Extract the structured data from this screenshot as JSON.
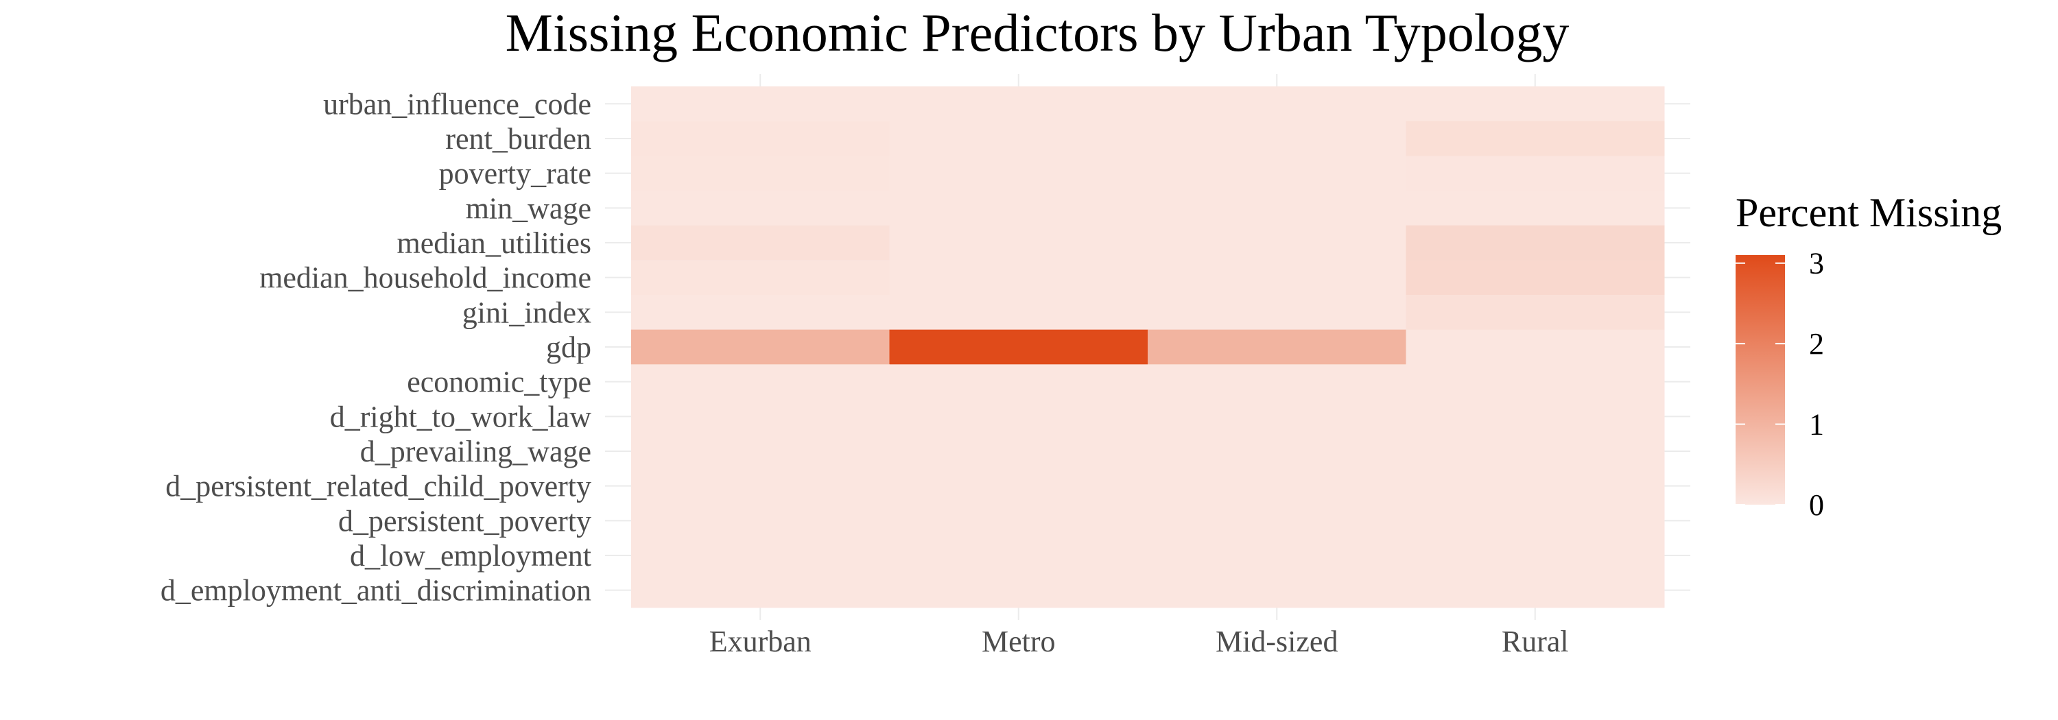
{
  "chart_data": {
    "type": "heatmap",
    "title": "Missing Economic Predictors by Urban Typology",
    "xlabel": "",
    "ylabel": "",
    "x_categories": [
      "Exurban",
      "Metro",
      "Mid-sized",
      "Rural"
    ],
    "y_categories": [
      "urban_influence_code",
      "rent_burden",
      "poverty_rate",
      "min_wage",
      "median_utilities",
      "median_household_income",
      "gini_index",
      "gdp",
      "economic_type",
      "d_right_to_work_law",
      "d_prevailing_wage",
      "d_persistent_related_child_poverty",
      "d_persistent_poverty",
      "d_low_employment",
      "d_employment_anti_discrimination"
    ],
    "values": [
      [
        0.0,
        0.0,
        0.0,
        0.0
      ],
      [
        0.05,
        0.0,
        0.0,
        0.15
      ],
      [
        0.03,
        0.0,
        0.0,
        0.02
      ],
      [
        0.0,
        0.0,
        0.0,
        0.0
      ],
      [
        0.12,
        0.0,
        0.0,
        0.3
      ],
      [
        0.05,
        0.0,
        0.0,
        0.28
      ],
      [
        0.0,
        0.0,
        0.0,
        0.12
      ],
      [
        1.0,
        3.1,
        1.0,
        0.0
      ],
      [
        0.0,
        0.0,
        0.0,
        0.0
      ],
      [
        0.0,
        0.0,
        0.0,
        0.0
      ],
      [
        0.0,
        0.0,
        0.0,
        0.0
      ],
      [
        0.0,
        0.0,
        0.0,
        0.0
      ],
      [
        0.0,
        0.0,
        0.0,
        0.0
      ],
      [
        0.0,
        0.0,
        0.0,
        0.0
      ],
      [
        0.0,
        0.0,
        0.0,
        0.0
      ]
    ],
    "legend": {
      "title": "Percent Missing",
      "ticks": [
        0,
        1,
        2,
        3
      ],
      "range": [
        0,
        3.1
      ],
      "placement": "right",
      "color_low": "#fbe6e0",
      "color_high": "#e04b1a"
    },
    "grid": true
  }
}
